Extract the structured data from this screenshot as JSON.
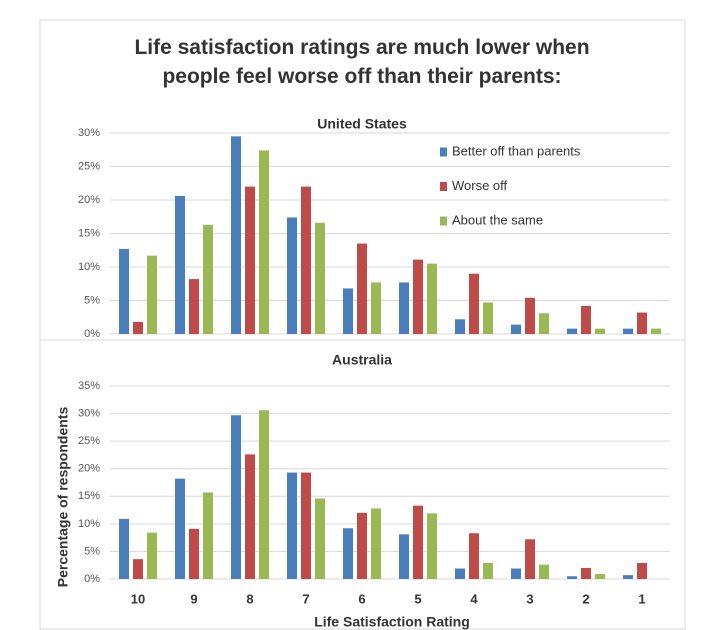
{
  "title": "Life satisfaction ratings are much lower when people feel worse off than their parents:",
  "chart_data": [
    {
      "type": "bar",
      "title": "United States",
      "categories": [
        null,
        null,
        null,
        null,
        null,
        null,
        null,
        null,
        null,
        null
      ],
      "series": [
        {
          "name": "Better off than parents",
          "color": "#4a7ebb",
          "values": [
            12.7,
            20.6,
            29.5,
            17.4,
            6.8,
            7.7,
            2.2,
            1.4,
            0.8,
            0.8
          ]
        },
        {
          "name": "Worse off",
          "color": "#be4b48",
          "values": [
            1.8,
            8.2,
            22,
            22,
            13.5,
            11.1,
            9.0,
            5.4,
            4.2,
            3.2
          ]
        },
        {
          "name": "About the same",
          "color": "#98b954",
          "values": [
            11.7,
            16.3,
            27.4,
            16.6,
            7.7,
            10.5,
            4.7,
            3.1,
            0.8,
            0.8
          ]
        }
      ],
      "ylim": [
        0,
        30
      ],
      "yticks": [
        {
          "value": 0,
          "label": "0%"
        },
        {
          "value": 5,
          "label": "5%"
        },
        {
          "value": 10,
          "label": "10%"
        },
        {
          "value": 15,
          "label": "15%"
        },
        {
          "value": 20,
          "label": "20%"
        },
        {
          "value": 25,
          "label": "25%"
        },
        {
          "value": 30,
          "label": "30%"
        }
      ],
      "grid": true,
      "legend": "upper right"
    },
    {
      "type": "bar",
      "title": "Australia",
      "xlabel": "Life  Satisfaction Rating",
      "ylabel": "Percentage of respondents",
      "categories": [
        "10",
        "9",
        "8",
        "7",
        "6",
        "5",
        "4",
        "3",
        "2",
        "1"
      ],
      "series": [
        {
          "color": "#4a7ebb",
          "values": [
            10.9,
            18.2,
            29.7,
            19.3,
            9.2,
            8.1,
            1.9,
            1.9,
            0.5,
            0.7
          ]
        },
        {
          "color": "#be4b48",
          "values": [
            3.6,
            9.1,
            22.6,
            19.3,
            12.0,
            13.3,
            8.3,
            7.2,
            2.0,
            2.9
          ]
        },
        {
          "color": "#98b954",
          "values": [
            8.4,
            15.7,
            30.6,
            14.6,
            12.8,
            11.9,
            2.9,
            2.6,
            0.9,
            0
          ]
        }
      ],
      "ylim": [
        0,
        35
      ],
      "yticks": [
        {
          "value": 0,
          "label": "0%"
        },
        {
          "value": 5,
          "label": "5%"
        },
        {
          "value": 10,
          "label": "10%"
        },
        {
          "value": 15,
          "label": "15%"
        },
        {
          "value": 20,
          "label": "20%"
        },
        {
          "value": 25,
          "label": "25%"
        },
        {
          "value": 30,
          "label": "30%"
        },
        {
          "value": 35,
          "label": "35%"
        }
      ],
      "grid": true
    }
  ]
}
